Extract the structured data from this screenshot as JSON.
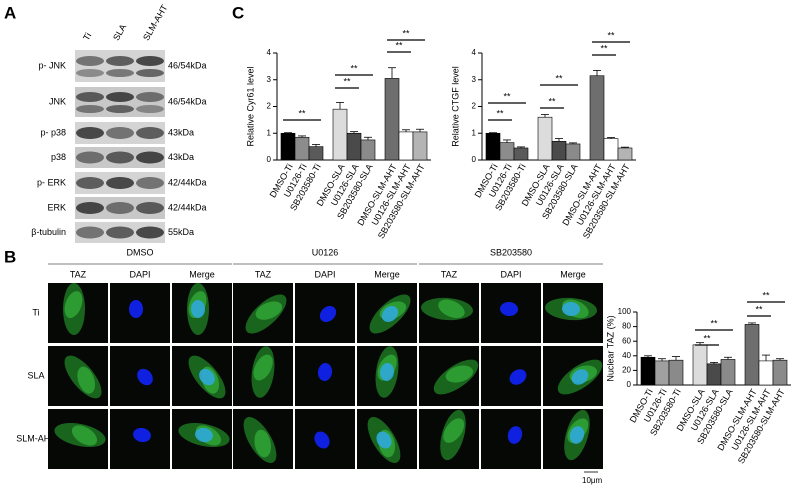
{
  "panel_labels": [
    "A",
    "B",
    "C"
  ],
  "blot": {
    "lanes": [
      "Ti",
      "SLA",
      "SLM-AHT"
    ],
    "rows": [
      {
        "label": "p- JNK",
        "size": "46/54kDa"
      },
      {
        "label": "JNK",
        "size": "46/54kDa"
      },
      {
        "label": "p- p38",
        "size": "43kDa"
      },
      {
        "label": "p38",
        "size": "43kDa"
      },
      {
        "label": "p- ERK",
        "size": "42/44kDa"
      },
      {
        "label": "ERK",
        "size": "42/44kDa"
      },
      {
        "label": "β-tubulin",
        "size": "55kDa"
      }
    ]
  },
  "imaging": {
    "groups": [
      "DMSO",
      "U0126",
      "SB203580"
    ],
    "channels": [
      "TAZ",
      "DAPI",
      "Merge"
    ],
    "rows": [
      "Ti",
      "SLA",
      "SLM-AHT"
    ],
    "scale_bar": "10μm"
  },
  "chart_data": [
    {
      "type": "bar",
      "ylabel": "Relative Cyr61 level",
      "categories": [
        "DMSO-Ti",
        "U0126-Ti",
        "SB203580-Ti",
        "DMSO-SLA",
        "U0126-SLA",
        "SB203580-SLA",
        "DMSO-SLM-AHT",
        "U0126-SLM-AHT",
        "SB203580-SLM-AHT"
      ],
      "values": [
        1.0,
        0.85,
        0.5,
        1.9,
        1.0,
        0.75,
        3.05,
        1.05,
        1.05
      ],
      "errors": [
        0.02,
        0.05,
        0.08,
        0.25,
        0.06,
        0.1,
        0.4,
        0.08,
        0.1
      ],
      "colors": [
        "#000000",
        "#8c8c8c",
        "#5a5a5a",
        "#dcdcdc",
        "#4a4a4a",
        "#8a8a8a",
        "#6e6e6e",
        "#ffffff",
        "#b4b4b4"
      ],
      "ylim": [
        0,
        4
      ],
      "yticks": [
        0,
        1,
        2,
        3,
        4
      ],
      "annotations": [
        "**",
        "**",
        "**",
        "**",
        "**"
      ]
    },
    {
      "type": "bar",
      "ylabel": "Relative CTGF level",
      "categories": [
        "DMSO-Ti",
        "U0126-Ti",
        "SB203580-Ti",
        "DMSO-SLA",
        "U0126-SLA",
        "SB203580-SLA",
        "DMSO-SLM-AHT",
        "U0126-SLM-AHT",
        "SB203580-SLM-AHT"
      ],
      "values": [
        1.0,
        0.65,
        0.45,
        1.6,
        0.7,
        0.6,
        3.15,
        0.8,
        0.45
      ],
      "errors": [
        0.02,
        0.1,
        0.04,
        0.1,
        0.1,
        0.04,
        0.2,
        0.04,
        0.03
      ],
      "colors": [
        "#000000",
        "#8c8c8c",
        "#5a5a5a",
        "#dcdcdc",
        "#4a4a4a",
        "#8a8a8a",
        "#6e6e6e",
        "#ffffff",
        "#b4b4b4"
      ],
      "ylim": [
        0,
        4
      ],
      "yticks": [
        0,
        1,
        2,
        3,
        4
      ],
      "annotations": [
        "**",
        "**",
        "**",
        "**",
        "**",
        "**"
      ]
    },
    {
      "type": "bar",
      "ylabel": "Nuclear TAZ (%)",
      "categories": [
        "DMSO-Ti",
        "U0126-Ti",
        "SB203580-Ti",
        "DMSO-SLA",
        "U0126-SLA",
        "SB203580-SLA",
        "DMSO-SLM-AHT",
        "U0126-SLM-AHT",
        "SB203580-SLM-AHT"
      ],
      "values": [
        38,
        33,
        34,
        55,
        29,
        35,
        83,
        33,
        34
      ],
      "errors": [
        2,
        3,
        5,
        3,
        2,
        3,
        2,
        8,
        2
      ],
      "colors": [
        "#000000",
        "#a0a0a0",
        "#8a8a8a",
        "#dcdcdc",
        "#4a4a4a",
        "#8a8a8a",
        "#6e6e6e",
        "#ffffff",
        "#8a8a8a"
      ],
      "ylim": [
        0,
        100
      ],
      "yticks": [
        0,
        20,
        40,
        60,
        80,
        100
      ],
      "annotations": [
        "**",
        "**",
        "**",
        "**"
      ]
    }
  ]
}
